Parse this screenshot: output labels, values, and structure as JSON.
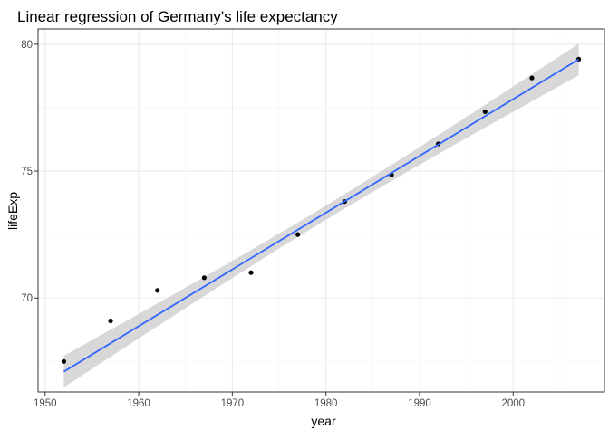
{
  "chart_data": {
    "type": "scatter",
    "title": "Linear regression of Germany's life expectancy",
    "xlabel": "year",
    "ylabel": "lifeExp",
    "xlim": [
      1949.25,
      2009.75
    ],
    "ylim": [
      66.3,
      80.6
    ],
    "x_ticks": [
      1950,
      1960,
      1970,
      1980,
      1990,
      2000
    ],
    "x_minor_ticks": [
      1955,
      1965,
      1975,
      1985,
      1995,
      2005
    ],
    "y_ticks": [
      70,
      75,
      80
    ],
    "y_minor_ticks": [
      67.5,
      72.5,
      77.5
    ],
    "grid": true,
    "legend": "none",
    "series": [
      {
        "type": "scatter",
        "x": [
          1952,
          1957,
          1962,
          1967,
          1972,
          1977,
          1982,
          1987,
          1992,
          1997,
          2002,
          2007
        ],
        "y": [
          67.5,
          69.1,
          70.3,
          70.8,
          71.0,
          72.5,
          73.8,
          74.85,
          76.07,
          77.34,
          78.67,
          79.41
        ],
        "color": "#000000"
      }
    ],
    "regression": {
      "method": "linear",
      "x_range": [
        1952,
        2007
      ],
      "fit": [
        67.1,
        79.4
      ],
      "ci_half_width_ends": 0.62,
      "ci_half_width_center": 0.28,
      "line_color": "#3366ff",
      "band_color": "#c8c8c8"
    },
    "panel_background": "#ffffff",
    "panel_border": "#333333",
    "grid_major_color": "#ebebeb",
    "grid_minor_color": "#f5f5f5"
  }
}
